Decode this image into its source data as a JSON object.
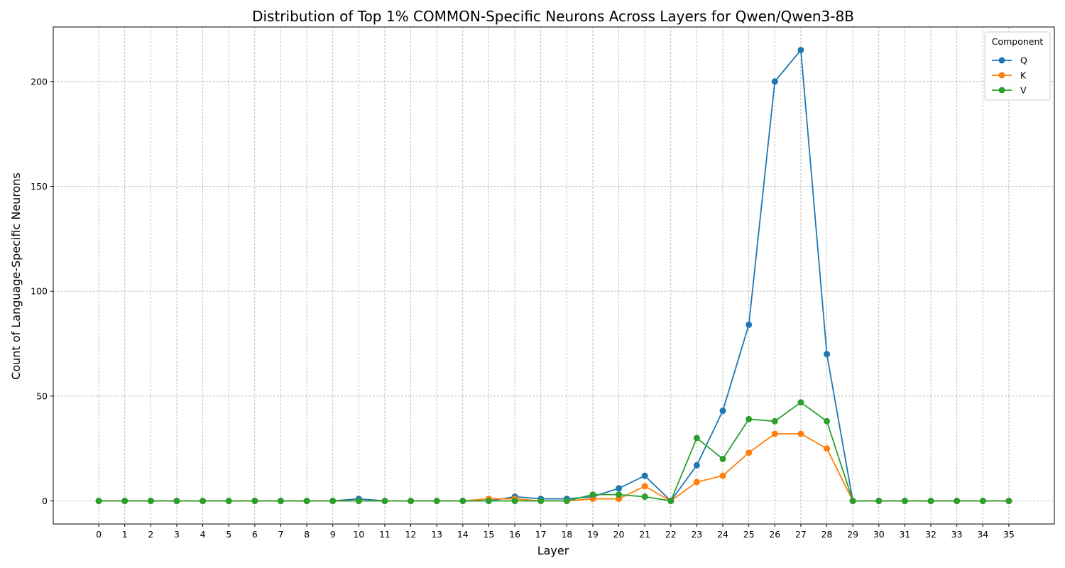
{
  "chart_data": {
    "type": "line",
    "title": "Distribution of Top 1% COMMON-Specific Neurons Across Layers for Qwen/Qwen3-8B",
    "xlabel": "Layer",
    "ylabel": "Count of Language-Specific Neurons",
    "x": [
      0,
      1,
      2,
      3,
      4,
      5,
      6,
      7,
      8,
      9,
      10,
      11,
      12,
      13,
      14,
      15,
      16,
      17,
      18,
      19,
      20,
      21,
      22,
      23,
      24,
      25,
      26,
      27,
      28,
      29,
      30,
      31,
      32,
      33,
      34,
      35
    ],
    "xlim": [
      -1.75,
      36.75
    ],
    "ylim": [
      -11,
      226
    ],
    "yticks": [
      0,
      50,
      100,
      150,
      200
    ],
    "grid": true,
    "legend": {
      "title": "Component",
      "placement": "top-right"
    },
    "series": [
      {
        "name": "Q",
        "color": "#1f77b4",
        "values": [
          0,
          0,
          0,
          0,
          0,
          0,
          0,
          0,
          0,
          0,
          1,
          0,
          0,
          0,
          0,
          0,
          2,
          1,
          1,
          2,
          6,
          12,
          0,
          17,
          43,
          84,
          200,
          215,
          70,
          0,
          0,
          0,
          0,
          0,
          0,
          0
        ]
      },
      {
        "name": "K",
        "color": "#ff7f0e",
        "values": [
          0,
          0,
          0,
          0,
          0,
          0,
          0,
          0,
          0,
          0,
          0,
          0,
          0,
          0,
          0,
          1,
          1,
          0,
          0,
          1,
          1,
          7,
          0,
          9,
          12,
          23,
          32,
          32,
          25,
          0,
          0,
          0,
          0,
          0,
          0,
          0
        ]
      },
      {
        "name": "V",
        "color": "#2ca02c",
        "values": [
          0,
          0,
          0,
          0,
          0,
          0,
          0,
          0,
          0,
          0,
          0,
          0,
          0,
          0,
          0,
          0,
          0,
          0,
          0,
          3,
          3,
          2,
          0,
          30,
          20,
          39,
          38,
          47,
          38,
          0,
          0,
          0,
          0,
          0,
          0,
          0
        ]
      }
    ]
  }
}
